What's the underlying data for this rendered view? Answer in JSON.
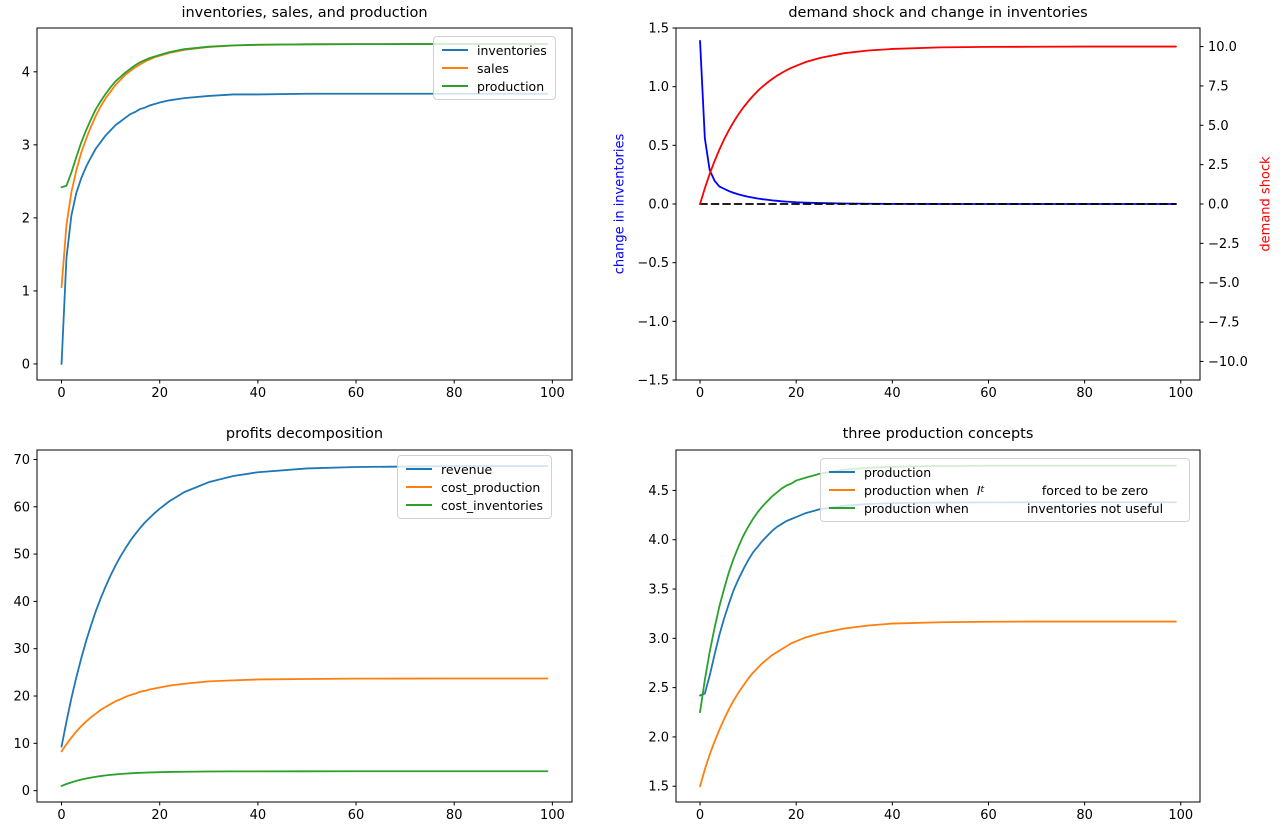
{
  "figure": {
    "background": "#ffffff"
  },
  "colors": {
    "mpl_blue": "#1f77b4",
    "mpl_orange": "#ff7f0e",
    "mpl_green": "#2ca02c",
    "pure_blue": "#0000ff",
    "pure_red": "#ff0000",
    "black": "#000000"
  },
  "chart_data": [
    {
      "type": "line",
      "title": "inventories, sales, and production",
      "xlim": [
        -5,
        104
      ],
      "ylim": [
        -0.22,
        4.6
      ],
      "xticks": [
        0,
        20,
        40,
        60,
        80,
        100
      ],
      "xtick_labels": [
        "0",
        "20",
        "40",
        "60",
        "80",
        "100"
      ],
      "yticks": [
        0,
        1,
        2,
        3,
        4
      ],
      "ytick_labels": [
        "0",
        "1",
        "2",
        "3",
        "4"
      ],
      "legend_position": "upper right",
      "x": [
        0,
        1,
        2,
        3,
        4,
        5,
        6,
        7,
        8,
        9,
        10,
        11,
        12,
        13,
        14,
        15,
        16,
        17,
        18,
        19,
        20,
        22,
        25,
        30,
        35,
        40,
        50,
        60,
        70,
        80,
        90,
        99
      ],
      "series": [
        {
          "name": "inventories",
          "color": "#1f77b4",
          "values": [
            0,
            1.45,
            2.03,
            2.34,
            2.54,
            2.7,
            2.83,
            2.95,
            3.04,
            3.13,
            3.2,
            3.27,
            3.32,
            3.37,
            3.42,
            3.45,
            3.49,
            3.51,
            3.54,
            3.56,
            3.58,
            3.61,
            3.64,
            3.67,
            3.69,
            3.69,
            3.7,
            3.7,
            3.7,
            3.7,
            3.7,
            3.7
          ]
        },
        {
          "name": "sales",
          "color": "#ff7f0e",
          "values": [
            1.05,
            1.9,
            2.35,
            2.65,
            2.89,
            3.08,
            3.25,
            3.4,
            3.53,
            3.64,
            3.73,
            3.82,
            3.89,
            3.96,
            4.01,
            4.06,
            4.1,
            4.14,
            4.17,
            4.2,
            4.22,
            4.26,
            4.3,
            4.34,
            4.36,
            4.37,
            4.377,
            4.379,
            4.38,
            4.38,
            4.38,
            4.38
          ]
        },
        {
          "name": "production",
          "color": "#2ca02c",
          "values": [
            2.42,
            2.44,
            2.62,
            2.83,
            3.03,
            3.2,
            3.35,
            3.49,
            3.6,
            3.7,
            3.79,
            3.87,
            3.93,
            3.99,
            4.04,
            4.09,
            4.13,
            4.16,
            4.19,
            4.21,
            4.23,
            4.27,
            4.31,
            4.344,
            4.362,
            4.371,
            4.377,
            4.379,
            4.38,
            4.38,
            4.38,
            4.38
          ]
        }
      ]
    },
    {
      "type": "line",
      "title": "demand shock and change in inventories",
      "xlim": [
        -5,
        104
      ],
      "ylim": [
        -1.5,
        1.5
      ],
      "xticks": [
        0,
        20,
        40,
        60,
        80,
        100
      ],
      "xtick_labels": [
        "0",
        "20",
        "40",
        "60",
        "80",
        "100"
      ],
      "yticks": [
        1.5,
        1.0,
        0.5,
        0.0,
        -0.5,
        -1.0,
        -1.5
      ],
      "ytick_labels": [
        "1.5",
        "1.0",
        "0.5",
        "0.0",
        "−0.5",
        "−1.0",
        "−1.5"
      ],
      "ylabel_left": {
        "text": "change in inventories",
        "color": "#0000ff"
      },
      "ylabel_right": {
        "text": "demand shock",
        "color": "#ff0000"
      },
      "y2": {
        "ylim": [
          -11.18,
          11.18
        ],
        "ticks": [
          10.0,
          7.5,
          5.0,
          2.5,
          0.0,
          -2.5,
          -5.0,
          -7.5,
          -10.0
        ],
        "tick_labels": [
          "10.0",
          "7.5",
          "5.0",
          "2.5",
          "0.0",
          "−2.5",
          "−5.0",
          "−7.5",
          "−10.0"
        ]
      },
      "x": [
        0,
        1,
        2,
        3,
        4,
        5,
        6,
        7,
        8,
        9,
        10,
        11,
        12,
        13,
        14,
        15,
        16,
        17,
        18,
        19,
        20,
        22,
        25,
        30,
        35,
        40,
        50,
        60,
        70,
        80,
        90,
        99
      ],
      "series": [
        {
          "name": "change in inventories",
          "color": "#0000ff",
          "axis": "left",
          "values": [
            1.39,
            0.56,
            0.29,
            0.2,
            0.15,
            0.13,
            0.11,
            0.095,
            0.082,
            0.071,
            0.062,
            0.054,
            0.047,
            0.041,
            0.036,
            0.031,
            0.027,
            0.023,
            0.02,
            0.018,
            0.015,
            0.012,
            0.008,
            0.004,
            0.002,
            0.001,
            0,
            0,
            0,
            0,
            0,
            0
          ]
        },
        {
          "name": "zero line",
          "color": "#000000",
          "axis": "left",
          "dash": true,
          "values": [
            0,
            0,
            0,
            0,
            0,
            0,
            0,
            0,
            0,
            0,
            0,
            0,
            0,
            0,
            0,
            0,
            0,
            0,
            0,
            0,
            0,
            0,
            0,
            0,
            0,
            0,
            0,
            0,
            0,
            0,
            0,
            0
          ]
        },
        {
          "name": "demand shock",
          "color": "#ff0000",
          "axis": "right",
          "values": [
            0,
            1,
            1.9,
            2.71,
            3.44,
            4.1,
            4.69,
            5.22,
            5.7,
            6.13,
            6.51,
            6.86,
            7.18,
            7.46,
            7.71,
            7.94,
            8.15,
            8.33,
            8.5,
            8.65,
            8.78,
            9.02,
            9.28,
            9.58,
            9.75,
            9.85,
            9.95,
            9.98,
            9.99,
            10,
            10,
            10
          ]
        }
      ]
    },
    {
      "type": "line",
      "title": "profits decomposition",
      "xlim": [
        -5,
        104
      ],
      "ylim": [
        -2.4,
        72.0
      ],
      "xticks": [
        0,
        20,
        40,
        60,
        80,
        100
      ],
      "xtick_labels": [
        "0",
        "20",
        "40",
        "60",
        "80",
        "100"
      ],
      "yticks": [
        0,
        10,
        20,
        30,
        40,
        50,
        60,
        70
      ],
      "ytick_labels": [
        "0",
        "10",
        "20",
        "30",
        "40",
        "50",
        "60",
        "70"
      ],
      "legend_position": "upper right",
      "x": [
        0,
        1,
        2,
        3,
        4,
        5,
        6,
        7,
        8,
        9,
        10,
        11,
        12,
        13,
        14,
        15,
        16,
        17,
        18,
        19,
        20,
        22,
        25,
        30,
        35,
        40,
        50,
        60,
        70,
        80,
        90,
        99
      ],
      "series": [
        {
          "name": "revenue",
          "color": "#1f77b4",
          "values": [
            9.3,
            14.6,
            19.5,
            23.9,
            27.9,
            31.6,
            34.9,
            38,
            40.7,
            43.2,
            45.5,
            47.6,
            49.5,
            51.2,
            52.8,
            54.2,
            55.5,
            56.7,
            57.7,
            58.7,
            59.6,
            61.2,
            63.1,
            65.2,
            66.5,
            67.3,
            68.1,
            68.4,
            68.5,
            68.6,
            68.6,
            68.6
          ]
        },
        {
          "name": "cost_production",
          "color": "#ff7f0e",
          "values": [
            8.3,
            9.8,
            11.2,
            12.5,
            13.6,
            14.6,
            15.5,
            16.3,
            17.1,
            17.7,
            18.3,
            18.9,
            19.3,
            19.8,
            20.2,
            20.5,
            20.9,
            21.1,
            21.4,
            21.6,
            21.8,
            22.2,
            22.6,
            23.1,
            23.3,
            23.5,
            23.6,
            23.67,
            23.69,
            23.7,
            23.7,
            23.7
          ]
        },
        {
          "name": "cost_inventories",
          "color": "#2ca02c",
          "values": [
            1,
            1.4,
            1.75,
            2.06,
            2.32,
            2.56,
            2.76,
            2.93,
            3.08,
            3.22,
            3.33,
            3.43,
            3.52,
            3.59,
            3.66,
            3.72,
            3.77,
            3.81,
            3.85,
            3.88,
            3.91,
            3.95,
            4,
            4.05,
            4.07,
            4.08,
            4.09,
            4.1,
            4.1,
            4.1,
            4.1,
            4.1
          ]
        }
      ]
    },
    {
      "type": "line",
      "title": "three production concepts",
      "xlim": [
        -5,
        104
      ],
      "ylim": [
        1.34,
        4.91
      ],
      "xticks": [
        0,
        20,
        40,
        60,
        80,
        100
      ],
      "xtick_labels": [
        "0",
        "20",
        "40",
        "60",
        "80",
        "100"
      ],
      "yticks": [
        1.5,
        2.0,
        2.5,
        3.0,
        3.5,
        4.0,
        4.5
      ],
      "ytick_labels": [
        "1.5",
        "2.0",
        "2.5",
        "3.0",
        "3.5",
        "4.0",
        "4.5"
      ],
      "legend_position": "upper center",
      "x": [
        0,
        1,
        2,
        3,
        4,
        5,
        6,
        7,
        8,
        9,
        10,
        11,
        12,
        13,
        14,
        15,
        16,
        17,
        18,
        19,
        20,
        22,
        25,
        30,
        35,
        40,
        50,
        60,
        70,
        80,
        90,
        99
      ],
      "series": [
        {
          "name": "production",
          "color": "#1f77b4",
          "values": [
            2.42,
            2.44,
            2.62,
            2.83,
            3.03,
            3.2,
            3.35,
            3.49,
            3.6,
            3.7,
            3.79,
            3.87,
            3.93,
            3.99,
            4.04,
            4.09,
            4.13,
            4.16,
            4.19,
            4.21,
            4.23,
            4.27,
            4.31,
            4.344,
            4.362,
            4.371,
            4.377,
            4.379,
            4.38,
            4.38,
            4.38,
            4.38
          ]
        },
        {
          "name": "production when I_t forced to be zero",
          "color": "#ff7f0e",
          "values": [
            1.5,
            1.67,
            1.82,
            1.95,
            2.07,
            2.18,
            2.28,
            2.37,
            2.45,
            2.52,
            2.59,
            2.65,
            2.7,
            2.75,
            2.79,
            2.83,
            2.86,
            2.89,
            2.92,
            2.95,
            2.97,
            3.01,
            3.05,
            3.1,
            3.13,
            3.15,
            3.163,
            3.168,
            3.17,
            3.17,
            3.17,
            3.17
          ]
        },
        {
          "name": "production when inventories not useful",
          "color": "#2ca02c",
          "values": [
            2.25,
            2.58,
            2.86,
            3.1,
            3.32,
            3.5,
            3.67,
            3.81,
            3.93,
            4.04,
            4.13,
            4.21,
            4.28,
            4.34,
            4.39,
            4.44,
            4.48,
            4.52,
            4.55,
            4.57,
            4.6,
            4.63,
            4.67,
            4.71,
            4.73,
            4.74,
            4.748,
            4.75,
            4.75,
            4.75,
            4.75,
            4.75
          ]
        }
      ],
      "legend_rows": [
        {
          "left": "production",
          "right": ""
        },
        {
          "left_pre": "production when  ",
          "math_var": "I",
          "math_sub": "t",
          "right": "forced to be zero"
        },
        {
          "left": "production when",
          "right": "inventories not useful"
        }
      ]
    }
  ]
}
